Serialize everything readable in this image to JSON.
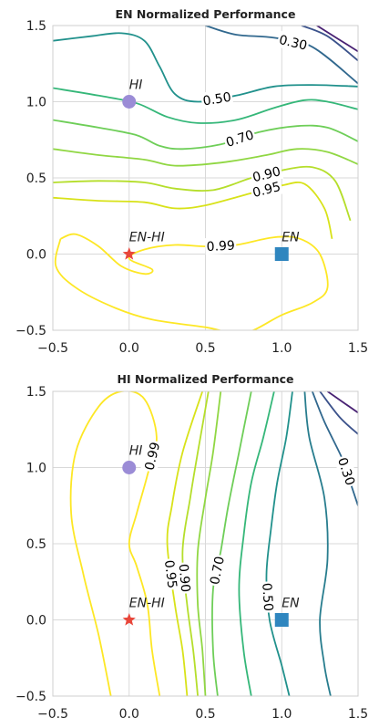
{
  "chart_data": [
    {
      "type": "contour",
      "title": "EN Normalized Performance",
      "xlabel": "",
      "ylabel": "",
      "xlim": [
        -0.5,
        1.5
      ],
      "ylim": [
        -0.5,
        1.5
      ],
      "xticks": [
        "−0.5",
        "0.0",
        "0.5",
        "1.0",
        "1.5"
      ],
      "yticks": [
        "−0.5",
        "0.0",
        "0.5",
        "1.0",
        "1.5"
      ],
      "grid": true,
      "colormap": "viridis",
      "points": [
        {
          "label": "HI",
          "x": 0.0,
          "y": 1.0,
          "marker": "circle",
          "color": "#9b8cd6"
        },
        {
          "label": "EN-HI",
          "x": 0.0,
          "y": 0.0,
          "marker": "star",
          "color": "#e8463a"
        },
        {
          "label": "EN",
          "x": 1.0,
          "y": 0.0,
          "marker": "square",
          "color": "#2f86bf"
        }
      ],
      "contours": [
        {
          "level": 0.1,
          "label": "",
          "color": "#482173",
          "pts": [
            [
              1.23,
              1.5
            ],
            [
              1.5,
              1.33
            ]
          ]
        },
        {
          "level": 0.2,
          "label": "",
          "color": "#3b528b",
          "pts": [
            [
              1.13,
              1.5
            ],
            [
              1.3,
              1.43
            ],
            [
              1.5,
              1.27
            ]
          ]
        },
        {
          "level": 0.3,
          "label": "0.30",
          "color": "#31688e",
          "pts": [
            [
              0.5,
              1.5
            ],
            [
              0.7,
              1.44
            ],
            [
              0.95,
              1.42
            ],
            [
              1.2,
              1.36
            ],
            [
              1.5,
              1.12
            ]
          ]
        },
        {
          "level": 0.5,
          "label": "0.50",
          "color": "#21918c",
          "pts": [
            [
              -0.5,
              1.4
            ],
            [
              -0.25,
              1.43
            ],
            [
              -0.05,
              1.45
            ],
            [
              0.1,
              1.4
            ],
            [
              0.2,
              1.23
            ],
            [
              0.3,
              1.05
            ],
            [
              0.45,
              1.0
            ],
            [
              0.7,
              1.04
            ],
            [
              0.95,
              1.1
            ],
            [
              1.2,
              1.11
            ],
            [
              1.5,
              1.1
            ]
          ]
        },
        {
          "level": 0.6,
          "label": "",
          "color": "#35b779",
          "pts": [
            [
              -0.5,
              1.09
            ],
            [
              -0.2,
              1.04
            ],
            [
              0.05,
              0.99
            ],
            [
              0.25,
              0.9
            ],
            [
              0.45,
              0.86
            ],
            [
              0.7,
              0.88
            ],
            [
              0.95,
              0.96
            ],
            [
              1.15,
              1.01
            ],
            [
              1.3,
              1.0
            ],
            [
              1.5,
              0.95
            ]
          ]
        },
        {
          "level": 0.7,
          "label": "0.70",
          "color": "#6ece58",
          "pts": [
            [
              -0.5,
              0.88
            ],
            [
              -0.2,
              0.83
            ],
            [
              0.05,
              0.78
            ],
            [
              0.2,
              0.71
            ],
            [
              0.35,
              0.69
            ],
            [
              0.6,
              0.72
            ],
            [
              0.85,
              0.8
            ],
            [
              1.1,
              0.84
            ],
            [
              1.3,
              0.83
            ],
            [
              1.5,
              0.74
            ]
          ]
        },
        {
          "level": 0.8,
          "label": "",
          "color": "#90d743",
          "pts": [
            [
              -0.5,
              0.69
            ],
            [
              -0.2,
              0.65
            ],
            [
              0.1,
              0.62
            ],
            [
              0.3,
              0.58
            ],
            [
              0.6,
              0.6
            ],
            [
              0.9,
              0.65
            ],
            [
              1.1,
              0.69
            ],
            [
              1.3,
              0.67
            ],
            [
              1.5,
              0.59
            ]
          ]
        },
        {
          "level": 0.9,
          "label": "0.90",
          "color": "#b5de2b",
          "pts": [
            [
              -0.5,
              0.47
            ],
            [
              -0.2,
              0.48
            ],
            [
              0.1,
              0.47
            ],
            [
              0.3,
              0.43
            ],
            [
              0.55,
              0.42
            ],
            [
              0.8,
              0.5
            ],
            [
              1.0,
              0.55
            ],
            [
              1.2,
              0.57
            ],
            [
              1.35,
              0.48
            ],
            [
              1.45,
              0.22
            ]
          ]
        },
        {
          "level": 0.95,
          "label": "0.95",
          "color": "#d8e219",
          "pts": [
            [
              -0.5,
              0.37
            ],
            [
              -0.2,
              0.35
            ],
            [
              0.1,
              0.34
            ],
            [
              0.3,
              0.3
            ],
            [
              0.5,
              0.32
            ],
            [
              0.8,
              0.4
            ],
            [
              1.0,
              0.45
            ],
            [
              1.15,
              0.46
            ],
            [
              1.28,
              0.3
            ],
            [
              1.33,
              0.1
            ]
          ]
        },
        {
          "level": 0.99,
          "label": "0.99",
          "color": "#fde725",
          "pts": [
            [
              -0.45,
              0.1
            ],
            [
              -0.48,
              -0.08
            ],
            [
              -0.35,
              -0.22
            ],
            [
              -0.1,
              -0.35
            ],
            [
              0.15,
              -0.43
            ],
            [
              0.5,
              -0.48
            ],
            [
              0.75,
              -0.52
            ],
            [
              1.0,
              -0.4
            ],
            [
              1.2,
              -0.32
            ],
            [
              1.3,
              -0.22
            ],
            [
              1.25,
              0.0
            ],
            [
              1.12,
              0.1
            ],
            [
              0.95,
              0.11
            ],
            [
              0.7,
              0.06
            ],
            [
              0.5,
              0.05
            ],
            [
              0.3,
              0.06
            ],
            [
              0.1,
              0.03
            ],
            [
              0.0,
              -0.03
            ],
            [
              0.15,
              -0.1
            ],
            [
              0.1,
              -0.13
            ],
            [
              -0.05,
              -0.08
            ],
            [
              -0.2,
              0.05
            ],
            [
              -0.35,
              0.13
            ],
            [
              -0.45,
              0.1
            ]
          ]
        }
      ]
    },
    {
      "type": "contour",
      "title": "HI Normalized Performance",
      "xlabel": "",
      "ylabel": "",
      "xlim": [
        -0.5,
        1.5
      ],
      "ylim": [
        -0.5,
        1.5
      ],
      "xticks": [
        "−0.5",
        "0.0",
        "0.5",
        "1.0",
        "1.5"
      ],
      "yticks": [
        "−0.5",
        "0.0",
        "0.5",
        "1.0",
        "1.5"
      ],
      "grid": true,
      "colormap": "viridis",
      "points": [
        {
          "label": "HI",
          "x": 0.0,
          "y": 1.0,
          "marker": "circle",
          "color": "#9b8cd6"
        },
        {
          "label": "EN-HI",
          "x": 0.0,
          "y": 0.0,
          "marker": "star",
          "color": "#e8463a"
        },
        {
          "label": "EN",
          "x": 1.0,
          "y": 0.0,
          "marker": "square",
          "color": "#2f86bf"
        }
      ],
      "contours": [
        {
          "level": 0.1,
          "label": "",
          "color": "#482173",
          "pts": [
            [
              1.3,
              1.5
            ],
            [
              1.5,
              1.36
            ]
          ]
        },
        {
          "level": 0.2,
          "label": "",
          "color": "#3b528b",
          "pts": [
            [
              1.25,
              1.5
            ],
            [
              1.38,
              1.33
            ],
            [
              1.5,
              1.22
            ]
          ]
        },
        {
          "level": 0.3,
          "label": "0.30",
          "color": "#31688e",
          "pts": [
            [
              1.2,
              1.5
            ],
            [
              1.28,
              1.3
            ],
            [
              1.4,
              1.05
            ],
            [
              1.45,
              0.9
            ],
            [
              1.5,
              0.75
            ]
          ]
        },
        {
          "level": 0.4,
          "label": "",
          "color": "#287d8e",
          "pts": [
            [
              1.15,
              1.5
            ],
            [
              1.18,
              1.2
            ],
            [
              1.28,
              0.8
            ],
            [
              1.3,
              0.4
            ],
            [
              1.25,
              0.0
            ],
            [
              1.28,
              -0.3
            ],
            [
              1.32,
              -0.5
            ]
          ]
        },
        {
          "level": 0.5,
          "label": "0.50",
          "color": "#21918c",
          "pts": [
            [
              1.07,
              1.5
            ],
            [
              1.03,
              1.2
            ],
            [
              0.97,
              0.9
            ],
            [
              0.93,
              0.6
            ],
            [
              0.9,
              0.3
            ],
            [
              0.92,
              0.0
            ],
            [
              1.0,
              -0.3
            ],
            [
              1.05,
              -0.5
            ]
          ]
        },
        {
          "level": 0.6,
          "label": "",
          "color": "#35b779",
          "pts": [
            [
              0.95,
              1.5
            ],
            [
              0.88,
              1.2
            ],
            [
              0.8,
              0.9
            ],
            [
              0.75,
              0.55
            ],
            [
              0.72,
              0.2
            ],
            [
              0.75,
              -0.2
            ],
            [
              0.8,
              -0.5
            ]
          ]
        },
        {
          "level": 0.7,
          "label": "0.70",
          "color": "#6ece58",
          "pts": [
            [
              0.8,
              1.5
            ],
            [
              0.72,
              1.1
            ],
            [
              0.65,
              0.75
            ],
            [
              0.6,
              0.45
            ],
            [
              0.55,
              0.2
            ],
            [
              0.55,
              -0.2
            ],
            [
              0.58,
              -0.5
            ]
          ]
        },
        {
          "level": 0.8,
          "label": "",
          "color": "#90d743",
          "pts": [
            [
              0.6,
              1.5
            ],
            [
              0.55,
              1.1
            ],
            [
              0.5,
              0.8
            ],
            [
              0.45,
              0.45
            ],
            [
              0.45,
              0.1
            ],
            [
              0.48,
              -0.2
            ],
            [
              0.5,
              -0.5
            ]
          ]
        },
        {
          "level": 0.9,
          "label": "0.90",
          "color": "#b5de2b",
          "pts": [
            [
              0.52,
              1.5
            ],
            [
              0.45,
              1.1
            ],
            [
              0.4,
              0.8
            ],
            [
              0.35,
              0.45
            ],
            [
              0.38,
              0.1
            ],
            [
              0.42,
              -0.2
            ],
            [
              0.45,
              -0.5
            ]
          ]
        },
        {
          "level": 0.95,
          "label": "0.95",
          "color": "#d8e219",
          "pts": [
            [
              0.48,
              1.5
            ],
            [
              0.35,
              1.1
            ],
            [
              0.28,
              0.75
            ],
            [
              0.25,
              0.5
            ],
            [
              0.3,
              0.1
            ],
            [
              0.35,
              -0.2
            ],
            [
              0.38,
              -0.5
            ]
          ]
        },
        {
          "level": 0.99,
          "label": "0.99",
          "color": "#fde725",
          "pts": [
            [
              -0.12,
              -0.5
            ],
            [
              -0.2,
              -0.1
            ],
            [
              -0.3,
              0.3
            ],
            [
              -0.38,
              0.7
            ],
            [
              -0.35,
              1.1
            ],
            [
              -0.2,
              1.4
            ],
            [
              -0.05,
              1.5
            ],
            [
              0.1,
              1.45
            ],
            [
              0.18,
              1.2
            ],
            [
              0.12,
              0.95
            ],
            [
              0.05,
              0.7
            ],
            [
              0.0,
              0.5
            ],
            [
              0.05,
              0.35
            ],
            [
              0.12,
              0.1
            ],
            [
              0.15,
              -0.2
            ],
            [
              0.2,
              -0.5
            ]
          ]
        }
      ]
    }
  ]
}
